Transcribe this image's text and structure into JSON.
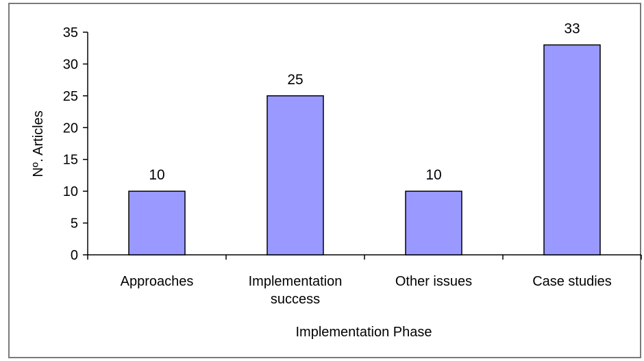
{
  "chart_data": {
    "type": "bar",
    "categories": [
      [
        "Approaches"
      ],
      [
        "Implementation",
        "success"
      ],
      [
        "Other issues"
      ],
      [
        "Case studies"
      ]
    ],
    "values": [
      10,
      25,
      10,
      33
    ],
    "data_labels": [
      "10",
      "25",
      "10",
      "33"
    ],
    "xlabel": "Implementation Phase",
    "ylabel": "Nº. Articles",
    "ylim": [
      0,
      35
    ],
    "yticks": [
      "0",
      "5",
      "10",
      "15",
      "20",
      "25",
      "30",
      "35"
    ],
    "grid": false,
    "legend": "none",
    "bar_color": "#9999ff",
    "bar_edge_color": "#000000"
  }
}
